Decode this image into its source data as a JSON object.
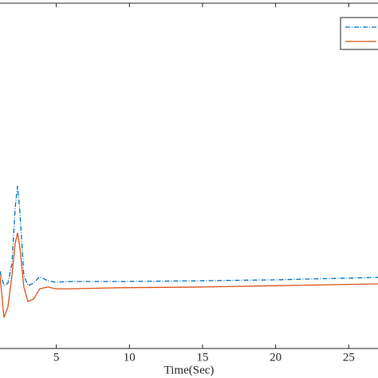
{
  "chart_data": {
    "type": "line",
    "x_label": "Time(Sec)",
    "x": [
      1.15,
      1.42,
      1.69,
      1.97,
      2.19,
      2.35,
      2.51,
      2.78,
      3.06,
      3.44,
      3.87,
      4.42,
      4.96,
      6.05,
      9.32,
      14.77,
      20.22,
      27.0
    ],
    "series": [
      {
        "color": "#0072bd",
        "line_style": "dashdot",
        "values": [
          22.4,
          18.2,
          18.9,
          24.7,
          40.9,
          47.1,
          39.7,
          21.2,
          18.2,
          18.9,
          20.8,
          19.6,
          19.2,
          19.4,
          19.4,
          19.6,
          19.9,
          20.6
        ]
      },
      {
        "color": "#d95319",
        "line_style": "solid",
        "values": [
          21.2,
          9.0,
          12.0,
          21.2,
          30.5,
          33.5,
          29.3,
          17.8,
          13.6,
          14.3,
          17.3,
          17.8,
          17.3,
          17.3,
          17.6,
          17.8,
          18.2,
          18.7
        ]
      }
    ],
    "xlim": [
      1.15,
      27.0
    ],
    "xticks": [
      5,
      10,
      15,
      20,
      25
    ],
    "ylim": [
      0,
      100
    ],
    "legend": "northeast"
  }
}
